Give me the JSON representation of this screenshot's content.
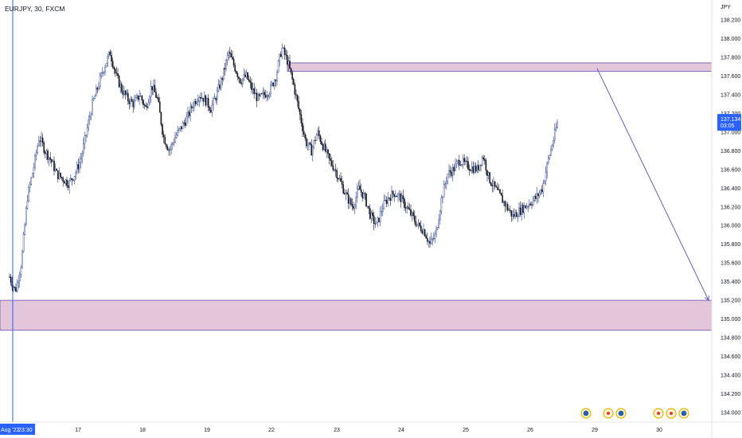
{
  "header": {
    "title": "EURJPY, 30, FXCM"
  },
  "chart_data": {
    "type": "candlestick",
    "symbol": "EURJPY",
    "interval": "30",
    "source": "FXCM",
    "currency_label": "JPY",
    "ylim": [
      133.9,
      138.3
    ],
    "y_ticks": [
      "138.200",
      "138.000",
      "137.800",
      "137.600",
      "137.400",
      "137.200",
      "137.000",
      "136.800",
      "136.600",
      "136.400",
      "136.200",
      "136.000",
      "135.800",
      "135.600",
      "135.400",
      "135.200",
      "135.000",
      "134.800",
      "134.600",
      "134.400",
      "134.200",
      "134.000"
    ],
    "x_ticks": [
      {
        "label": "17",
        "day": 17
      },
      {
        "label": "18",
        "day": 18
      },
      {
        "label": "19",
        "day": 19
      },
      {
        "label": "22",
        "day": 22
      },
      {
        "label": "23",
        "day": 23
      },
      {
        "label": "24",
        "day": 24
      },
      {
        "label": "25",
        "day": 25
      },
      {
        "label": "26",
        "day": 26
      },
      {
        "label": "29",
        "day": 29
      },
      {
        "label": "30",
        "day": 30
      }
    ],
    "cursor_label": "Aug '22",
    "cursor_time": "23:30",
    "current_price": "137.134",
    "countdown": "03:05",
    "path_points": [
      [
        15.7,
        135.45
      ],
      [
        15.85,
        135.3
      ],
      [
        16.0,
        135.6
      ],
      [
        16.15,
        136.3
      ],
      [
        16.3,
        136.6
      ],
      [
        16.45,
        136.95
      ],
      [
        16.6,
        136.8
      ],
      [
        16.75,
        136.7
      ],
      [
        16.9,
        136.55
      ],
      [
        17.05,
        136.5
      ],
      [
        17.2,
        136.45
      ],
      [
        17.35,
        136.55
      ],
      [
        17.5,
        136.7
      ],
      [
        17.65,
        137.0
      ],
      [
        17.8,
        137.3
      ],
      [
        17.95,
        137.5
      ],
      [
        18.1,
        137.7
      ],
      [
        18.25,
        137.85
      ],
      [
        18.4,
        137.6
      ],
      [
        18.55,
        137.45
      ],
      [
        18.7,
        137.35
      ],
      [
        18.85,
        137.3
      ],
      [
        19.0,
        137.4
      ],
      [
        19.15,
        137.25
      ],
      [
        19.3,
        137.5
      ],
      [
        19.45,
        137.35
      ],
      [
        19.6,
        136.95
      ],
      [
        19.75,
        136.8
      ],
      [
        19.9,
        136.95
      ],
      [
        20.05,
        137.05
      ],
      [
        20.2,
        137.15
      ],
      [
        20.35,
        137.3
      ],
      [
        20.5,
        137.4
      ],
      [
        20.65,
        137.35
      ],
      [
        20.8,
        137.25
      ],
      [
        20.95,
        137.4
      ],
      [
        21.1,
        137.6
      ],
      [
        21.25,
        137.85
      ],
      [
        21.4,
        137.7
      ],
      [
        21.55,
        137.55
      ],
      [
        21.7,
        137.6
      ],
      [
        21.85,
        137.45
      ],
      [
        22.0,
        137.35
      ],
      [
        22.15,
        137.4
      ],
      [
        22.3,
        137.45
      ],
      [
        22.45,
        137.6
      ],
      [
        22.6,
        137.9
      ],
      [
        22.75,
        137.75
      ],
      [
        22.9,
        137.5
      ],
      [
        23.05,
        137.2
      ],
      [
        23.2,
        136.9
      ],
      [
        23.35,
        136.8
      ],
      [
        23.5,
        137.0
      ],
      [
        23.65,
        136.85
      ],
      [
        23.8,
        136.7
      ],
      [
        23.95,
        136.6
      ],
      [
        24.1,
        136.45
      ],
      [
        24.25,
        136.3
      ],
      [
        24.4,
        136.2
      ],
      [
        24.55,
        136.4
      ],
      [
        24.7,
        136.3
      ],
      [
        24.85,
        136.1
      ],
      [
        25.0,
        136.0
      ],
      [
        25.15,
        136.2
      ],
      [
        25.3,
        136.3
      ],
      [
        25.45,
        136.35
      ],
      [
        25.6,
        136.3
      ],
      [
        25.75,
        136.2
      ],
      [
        25.9,
        136.1
      ],
      [
        26.05,
        136.0
      ],
      [
        26.2,
        135.95
      ],
      [
        26.35,
        135.8
      ],
      [
        26.5,
        135.9
      ],
      [
        26.65,
        136.3
      ],
      [
        26.8,
        136.55
      ],
      [
        26.95,
        136.6
      ],
      [
        27.1,
        136.7
      ],
      [
        27.25,
        136.65
      ],
      [
        27.4,
        136.62
      ],
      [
        27.55,
        136.6
      ],
      [
        27.7,
        136.75
      ],
      [
        27.85,
        136.5
      ],
      [
        28.0,
        136.4
      ],
      [
        28.15,
        136.3
      ],
      [
        28.3,
        136.2
      ],
      [
        28.45,
        136.1
      ],
      [
        28.6,
        136.15
      ],
      [
        28.75,
        136.2
      ],
      [
        28.9,
        136.25
      ],
      [
        29.05,
        136.3
      ],
      [
        29.2,
        136.4
      ],
      [
        29.35,
        136.7
      ],
      [
        29.5,
        136.95
      ],
      [
        29.6,
        137.13
      ]
    ],
    "zones": [
      {
        "name": "supply-zone",
        "from_day": 22.25,
        "to_day": 31.5,
        "low": 137.65,
        "high": 137.74,
        "color": "#e4c6da"
      },
      {
        "name": "demand-zone",
        "from_day": 15.0,
        "to_day": 31.5,
        "low": 134.88,
        "high": 135.2,
        "color": "#e4c6da"
      }
    ],
    "arrow": {
      "from": [
        29.0,
        137.68
      ],
      "to": [
        31.0,
        135.2
      ],
      "color": "#6a5fb3"
    },
    "event_markers": [
      {
        "day": 28.92,
        "kind": "flag-blue"
      },
      {
        "day": 29.15,
        "kind": "flag-red"
      },
      {
        "day": 29.36,
        "kind": "flag-blue"
      },
      {
        "day": 30.0,
        "kind": "flag-red"
      },
      {
        "day": 30.18,
        "kind": "flag-red"
      },
      {
        "day": 30.42,
        "kind": "flag-blue"
      }
    ],
    "colors": {
      "zone_border": "#7e6bb8",
      "cursor_line": "#2962ff",
      "price_badge": "#2962ff",
      "candle_up": "#26408b",
      "candle_down": "#131722"
    }
  }
}
